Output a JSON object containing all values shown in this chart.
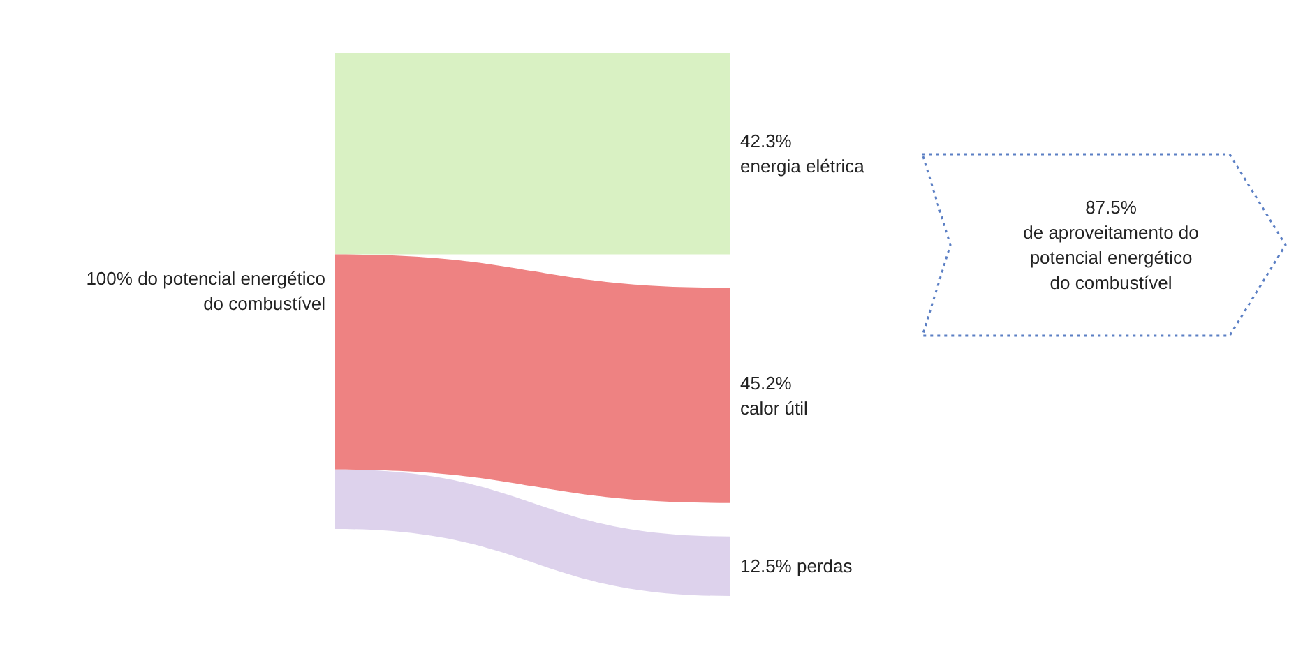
{
  "chart_data": {
    "type": "other",
    "categories": [
      "energia elétrica",
      "calor útil",
      "perdas"
    ],
    "values": [
      42.3,
      45.2,
      12.5
    ],
    "value_labels": [
      "42.3%",
      "45.2%",
      "12.5%"
    ],
    "colors": [
      "#d5f0bc",
      "#ec7474",
      "#d9cdea"
    ],
    "annotations": [
      "100% do potencial energético\ndo combustível",
      "87.5%\nde aproveitamento do\npotencial energético\ndo combustível"
    ]
  }
}
